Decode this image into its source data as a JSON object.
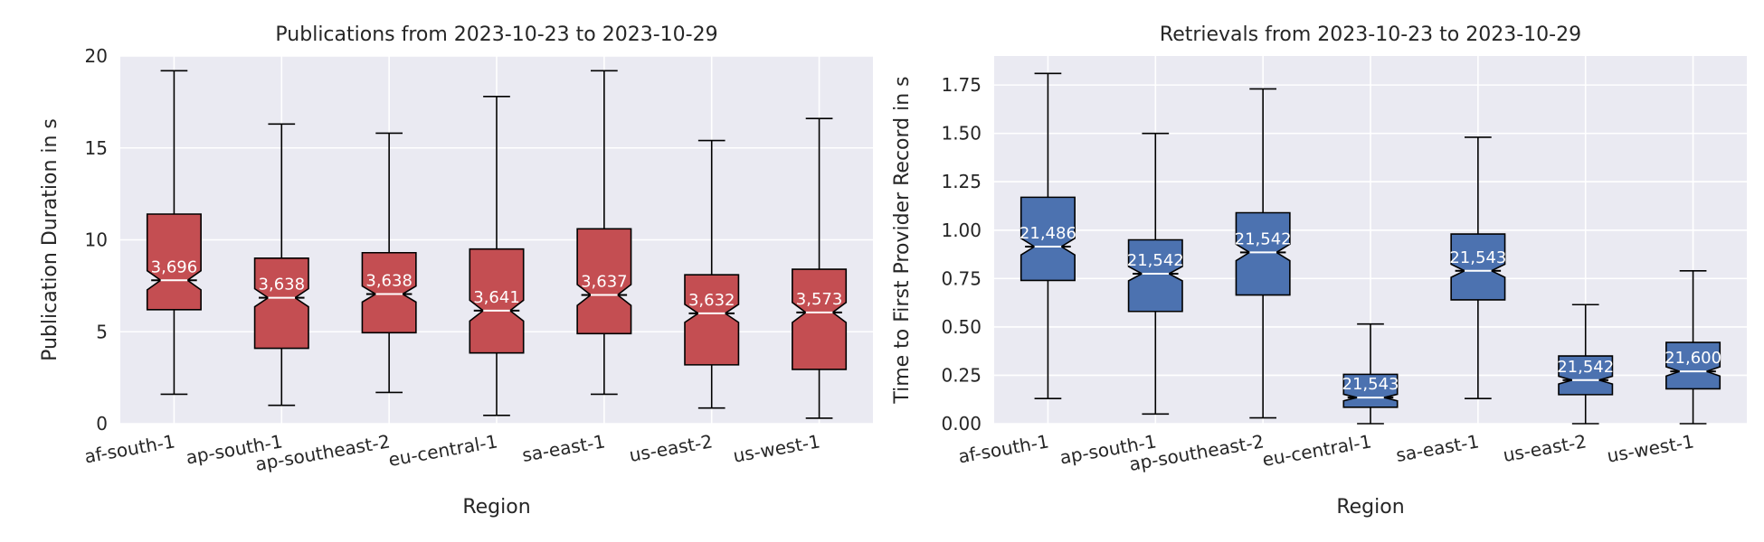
{
  "chart_data": [
    {
      "type": "boxplot",
      "title": "Publications from 2023-10-23 to 2023-10-29",
      "xlabel": "Region",
      "ylabel": "Publication Duration in s",
      "ylim": [
        0,
        20
      ],
      "yticks": [
        0,
        5,
        10,
        15,
        20
      ],
      "ytick_labels": [
        "0",
        "5",
        "10",
        "15",
        "20"
      ],
      "notched": true,
      "color": "#c44e52",
      "categories": [
        "af-south-1",
        "ap-south-1",
        "ap-southeast-2",
        "eu-central-1",
        "sa-east-1",
        "us-east-2",
        "us-west-1"
      ],
      "boxes": [
        {
          "whisker_low": 1.6,
          "q1": 6.2,
          "median": 7.8,
          "q3": 11.4,
          "whisker_high": 19.2,
          "count": "3,696"
        },
        {
          "whisker_low": 1.0,
          "q1": 4.1,
          "median": 6.85,
          "q3": 9.0,
          "whisker_high": 16.3,
          "count": "3,638"
        },
        {
          "whisker_low": 1.7,
          "q1": 4.95,
          "median": 7.05,
          "q3": 9.3,
          "whisker_high": 15.8,
          "count": "3,638"
        },
        {
          "whisker_low": 0.45,
          "q1": 3.85,
          "median": 6.15,
          "q3": 9.5,
          "whisker_high": 17.8,
          "count": "3,641"
        },
        {
          "whisker_low": 1.6,
          "q1": 4.9,
          "median": 7.0,
          "q3": 10.6,
          "whisker_high": 19.2,
          "count": "3,637"
        },
        {
          "whisker_low": 0.85,
          "q1": 3.2,
          "median": 6.0,
          "q3": 8.1,
          "whisker_high": 15.4,
          "count": "3,632"
        },
        {
          "whisker_low": 0.3,
          "q1": 2.95,
          "median": 6.05,
          "q3": 8.4,
          "whisker_high": 16.6,
          "count": "3,573"
        }
      ]
    },
    {
      "type": "boxplot",
      "title": "Retrievals from 2023-10-23 to 2023-10-29",
      "xlabel": "Region",
      "ylabel": "Time to First Provider Record in s",
      "ylim": [
        0,
        1.9
      ],
      "yticks": [
        0,
        0.25,
        0.5,
        0.75,
        1.0,
        1.25,
        1.5,
        1.75
      ],
      "ytick_labels": [
        "0.00",
        "0.25",
        "0.50",
        "0.75",
        "1.00",
        "1.25",
        "1.50",
        "1.75"
      ],
      "notched": true,
      "color": "#4c72b0",
      "categories": [
        "af-south-1",
        "ap-south-1",
        "ap-southeast-2",
        "eu-central-1",
        "sa-east-1",
        "us-east-2",
        "us-west-1"
      ],
      "boxes": [
        {
          "whisker_low": 0.13,
          "q1": 0.74,
          "median": 0.915,
          "q3": 1.17,
          "whisker_high": 1.81,
          "count": "21,486"
        },
        {
          "whisker_low": 0.05,
          "q1": 0.58,
          "median": 0.775,
          "q3": 0.95,
          "whisker_high": 1.5,
          "count": "21,542"
        },
        {
          "whisker_low": 0.03,
          "q1": 0.665,
          "median": 0.885,
          "q3": 1.09,
          "whisker_high": 1.73,
          "count": "21,542"
        },
        {
          "whisker_low": 0.0,
          "q1": 0.085,
          "median": 0.135,
          "q3": 0.255,
          "whisker_high": 0.515,
          "count": "21,543"
        },
        {
          "whisker_low": 0.13,
          "q1": 0.64,
          "median": 0.79,
          "q3": 0.98,
          "whisker_high": 1.48,
          "count": "21,543"
        },
        {
          "whisker_low": 0.0,
          "q1": 0.15,
          "median": 0.225,
          "q3": 0.35,
          "whisker_high": 0.615,
          "count": "21,542"
        },
        {
          "whisker_low": 0.0,
          "q1": 0.18,
          "median": 0.27,
          "q3": 0.42,
          "whisker_high": 0.79,
          "count": "21,600"
        }
      ]
    }
  ]
}
